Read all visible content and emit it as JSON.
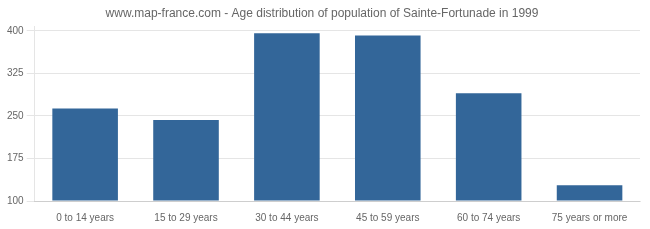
{
  "chart_data": {
    "type": "bar",
    "title": "www.map-france.com - Age distribution of population of Sainte-Fortunade in 1999",
    "categories": [
      "0 to 14 years",
      "15 to 29 years",
      "30 to 44 years",
      "45 to 59 years",
      "60 to 74 years",
      "75 years or more"
    ],
    "values": [
      263,
      243,
      396,
      392,
      290,
      128
    ],
    "color": "#336699",
    "ylim": [
      100,
      408
    ],
    "yticks": [
      100,
      175,
      250,
      325,
      400
    ],
    "grid": true
  }
}
